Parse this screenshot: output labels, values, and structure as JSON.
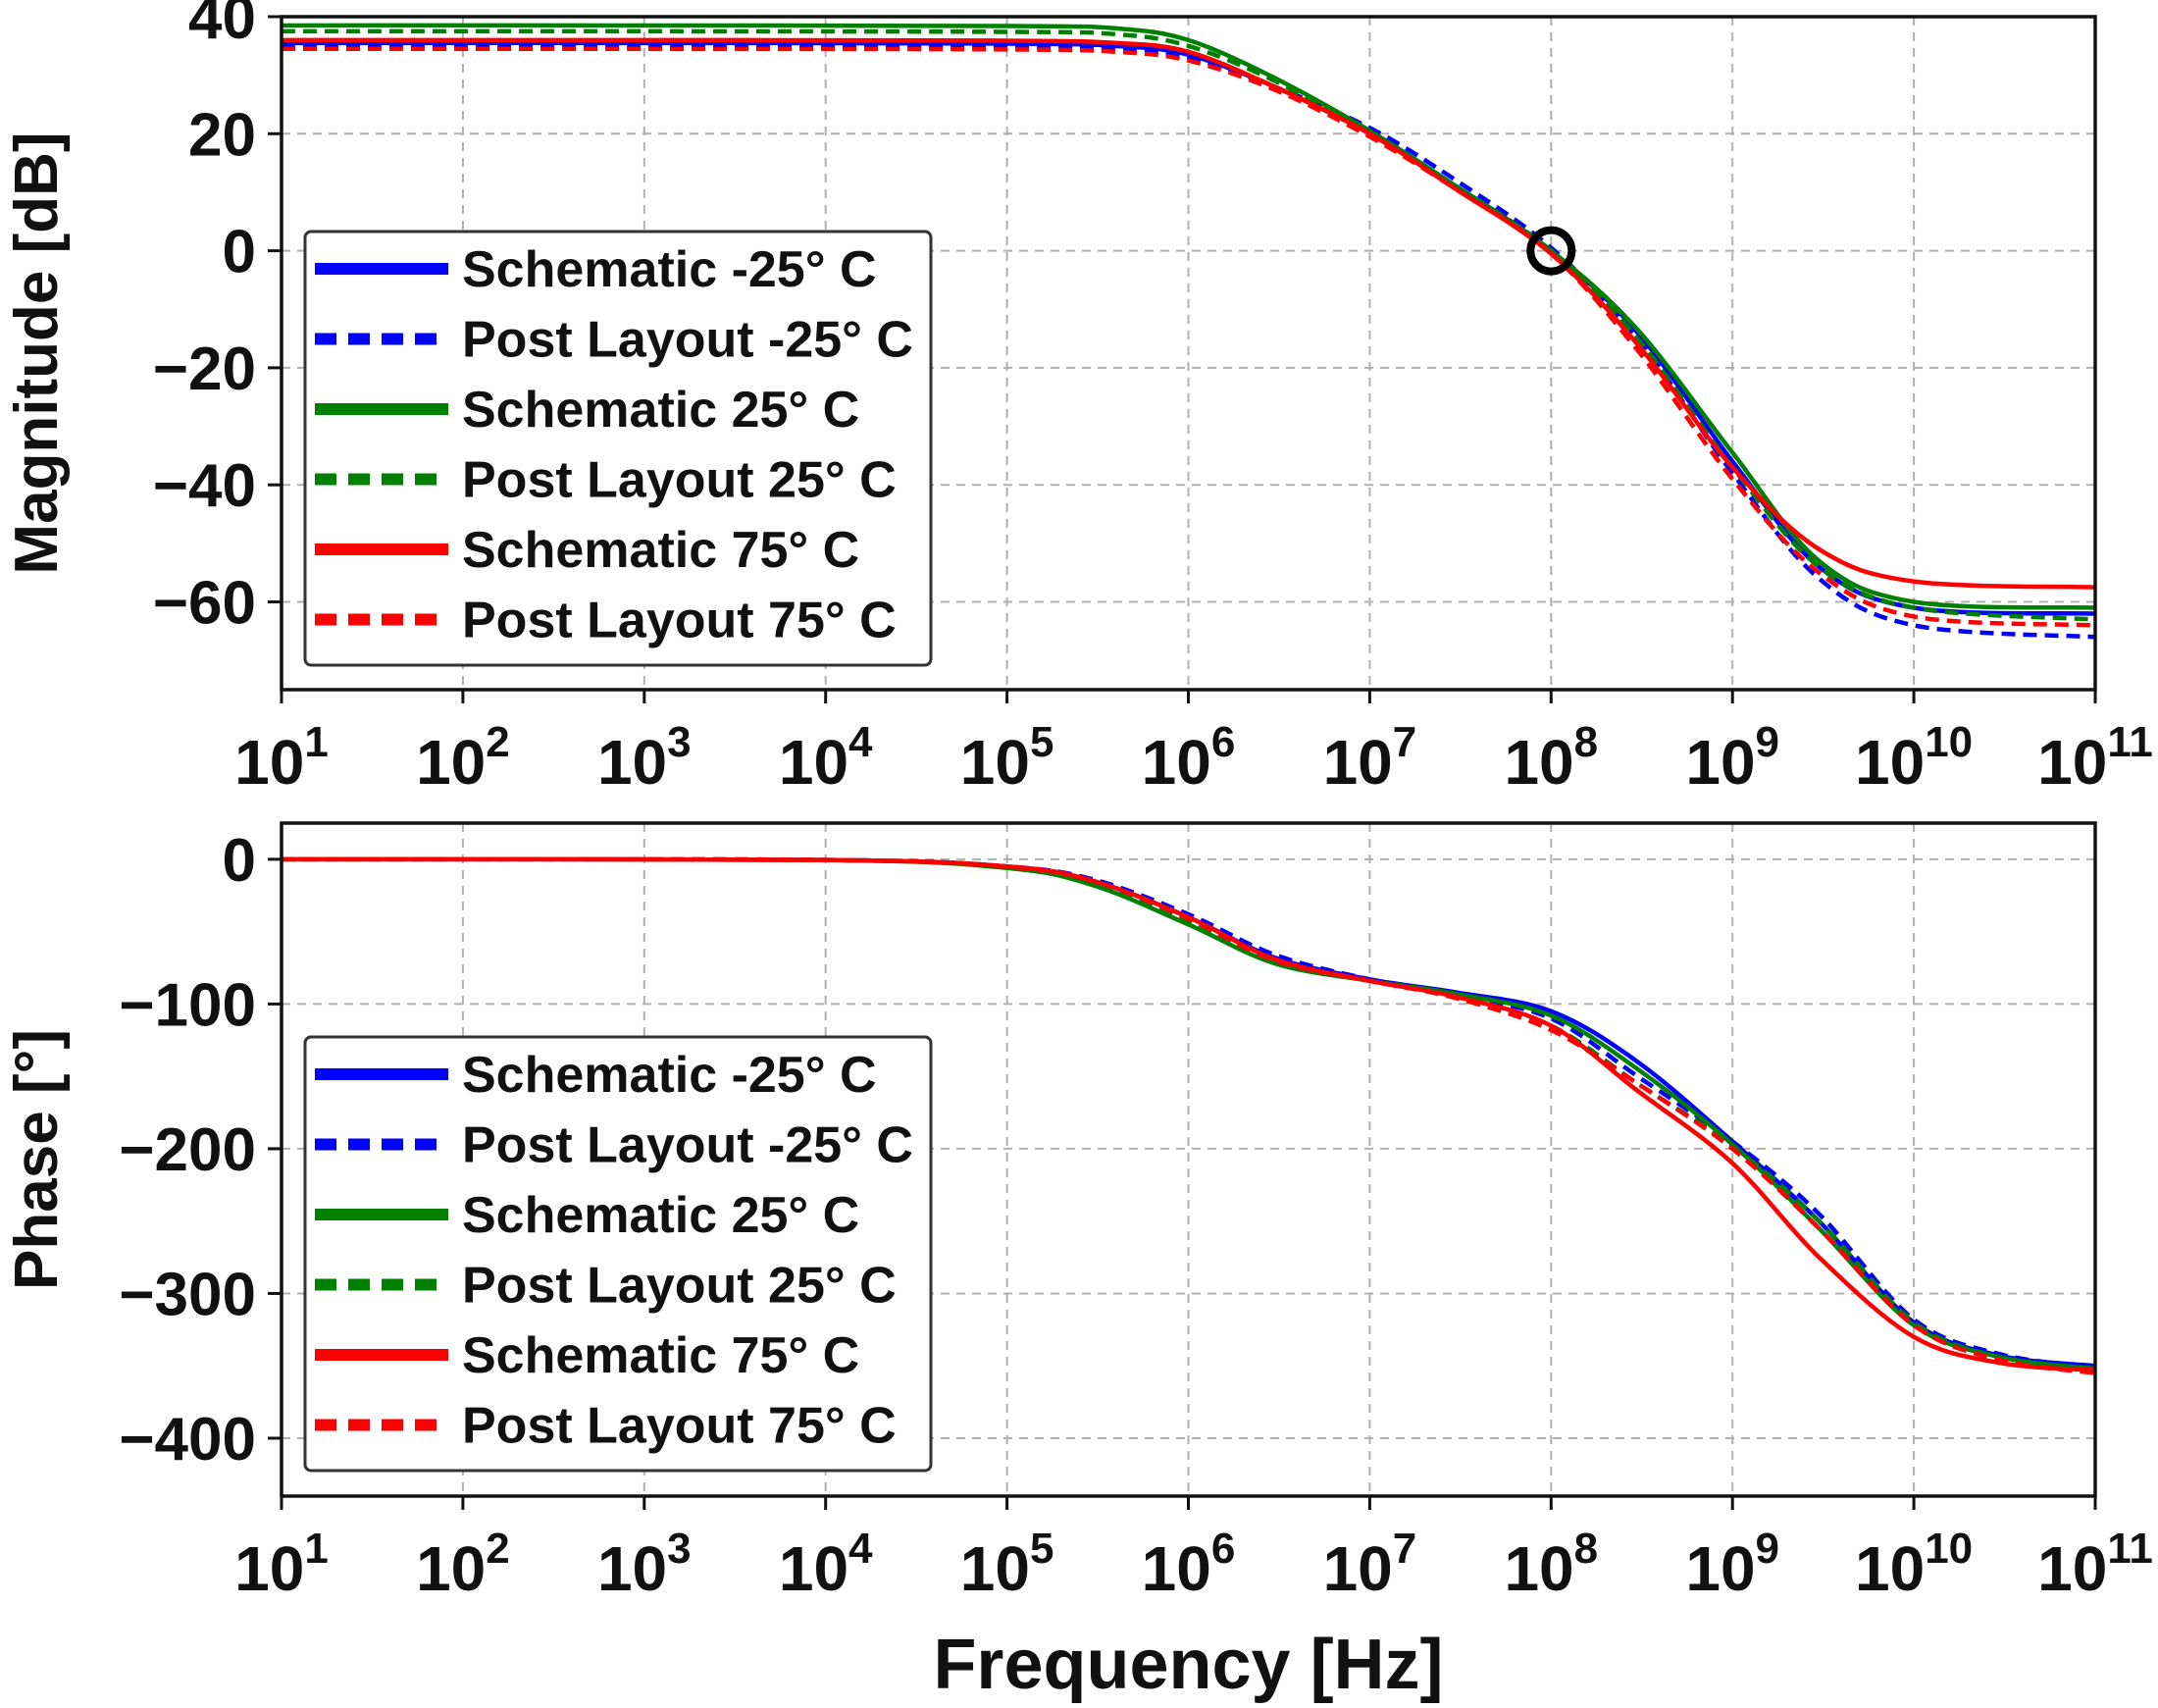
{
  "chart_data": [
    {
      "type": "line",
      "panel": "magnitude",
      "xlabel": "",
      "ylabel": "Magnitude [dB]",
      "xscale": "log",
      "xlim": [
        10,
        100000000000
      ],
      "ylim": [
        -75,
        40
      ],
      "xticks": [
        1,
        2,
        3,
        4,
        5,
        6,
        7,
        8,
        9,
        10,
        11
      ],
      "yticks": [
        40,
        20,
        0,
        -20,
        -40,
        -60
      ],
      "ytick_labels": [
        "40",
        "20",
        "0",
        "−20",
        "−40",
        "−60"
      ],
      "grid": true,
      "legend_placement": "left",
      "annotation": {
        "type": "circle-marker",
        "x": 100000000,
        "y": 0
      },
      "series": [
        {
          "name": "Schematic -25° C",
          "color": "#0000ff",
          "style": "solid",
          "x": [
            10,
            1000,
            100000,
            400000,
            1000000,
            3000000,
            10000000,
            30000000,
            100000000,
            300000000,
            1000000000,
            3000000000,
            10000000000,
            100000000000
          ],
          "y": [
            35.5,
            35.5,
            35.4,
            35,
            33.5,
            28,
            20,
            11,
            0,
            -14,
            -36,
            -54,
            -61,
            -62
          ]
        },
        {
          "name": "Post Layout -25° C",
          "color": "#0000ff",
          "style": "dashed",
          "x": [
            10,
            1000,
            100000,
            400000,
            1000000,
            3000000,
            10000000,
            30000000,
            100000000,
            300000000,
            1000000000,
            3000000000,
            10000000000,
            100000000000
          ],
          "y": [
            35,
            35,
            34.9,
            34.5,
            33,
            28,
            21,
            12,
            0.5,
            -15,
            -38,
            -56,
            -64,
            -66
          ]
        },
        {
          "name": "Schematic 25° C",
          "color": "#008000",
          "style": "solid",
          "x": [
            10,
            1000,
            100000,
            400000,
            1000000,
            3000000,
            10000000,
            30000000,
            100000000,
            300000000,
            1000000000,
            3000000000,
            10000000000,
            100000000000
          ],
          "y": [
            38.5,
            38.5,
            38.4,
            38,
            36,
            29.5,
            20.5,
            11,
            0,
            -13.5,
            -34.5,
            -53,
            -60,
            -61
          ]
        },
        {
          "name": "Post Layout 25° C",
          "color": "#008000",
          "style": "dashed",
          "x": [
            10,
            1000,
            100000,
            400000,
            1000000,
            3000000,
            10000000,
            30000000,
            100000000,
            300000000,
            1000000000,
            3000000000,
            10000000000,
            100000000000
          ],
          "y": [
            37.5,
            37.5,
            37.4,
            37,
            35,
            29,
            20,
            11,
            0,
            -15,
            -37,
            -54,
            -61,
            -63
          ]
        },
        {
          "name": "Schematic 75° C",
          "color": "#ff0000",
          "style": "solid",
          "x": [
            10,
            1000,
            100000,
            400000,
            1000000,
            3000000,
            10000000,
            30000000,
            100000000,
            300000000,
            1000000000,
            3000000000,
            10000000000,
            100000000000
          ],
          "y": [
            36,
            36,
            35.9,
            35.5,
            34,
            28,
            20,
            10.5,
            -0.5,
            -16,
            -37,
            -51,
            -56.5,
            -57.5
          ]
        },
        {
          "name": "Post Layout 75° C",
          "color": "#ff0000",
          "style": "dashed",
          "x": [
            10,
            1000,
            100000,
            400000,
            1000000,
            3000000,
            10000000,
            30000000,
            100000000,
            300000000,
            1000000000,
            3000000000,
            10000000000,
            100000000000
          ],
          "y": [
            34.5,
            34.5,
            34.4,
            34,
            32.5,
            27.5,
            19.5,
            10.5,
            -0.5,
            -17,
            -39,
            -55,
            -62.5,
            -64
          ]
        }
      ]
    },
    {
      "type": "line",
      "panel": "phase",
      "xlabel": "Frequency [Hz]",
      "ylabel": "Phase [°]",
      "xscale": "log",
      "xlim": [
        10,
        100000000000
      ],
      "ylim": [
        -440,
        25
      ],
      "xticks": [
        1,
        2,
        3,
        4,
        5,
        6,
        7,
        8,
        9,
        10,
        11
      ],
      "yticks": [
        0,
        -100,
        -200,
        -300,
        -400
      ],
      "ytick_labels": [
        "0",
        "−100",
        "−200",
        "−300",
        "−400"
      ],
      "grid": true,
      "legend_placement": "lower left",
      "series": [
        {
          "name": "Schematic -25° C",
          "color": "#0000ff",
          "style": "solid",
          "x": [
            10,
            10000,
            100000,
            300000,
            1000000,
            3000000,
            10000000,
            30000000,
            100000000,
            300000000,
            1000000000,
            3000000000,
            10000000000,
            30000000000,
            100000000000
          ],
          "y": [
            0,
            -0.5,
            -5,
            -15,
            -40,
            -68,
            -83,
            -92,
            -105,
            -140,
            -195,
            -250,
            -320,
            -343,
            -350
          ]
        },
        {
          "name": "Post Layout -25° C",
          "color": "#0000ff",
          "style": "dashed",
          "x": [
            10,
            10000,
            100000,
            300000,
            1000000,
            3000000,
            10000000,
            30000000,
            100000000,
            300000000,
            1000000000,
            3000000000,
            10000000000,
            30000000000,
            100000000000
          ],
          "y": [
            0,
            -0.5,
            -5,
            -14,
            -38,
            -66,
            -83,
            -94,
            -110,
            -150,
            -195,
            -245,
            -318,
            -342,
            -351
          ]
        },
        {
          "name": "Schematic 25° C",
          "color": "#008000",
          "style": "solid",
          "x": [
            10,
            10000,
            100000,
            300000,
            1000000,
            3000000,
            10000000,
            30000000,
            100000000,
            300000000,
            1000000000,
            3000000000,
            10000000000,
            30000000000,
            100000000000
          ],
          "y": [
            0,
            -0.5,
            -6,
            -18,
            -45,
            -72,
            -84,
            -93,
            -108,
            -145,
            -197,
            -255,
            -322,
            -344,
            -352
          ]
        },
        {
          "name": "Post Layout 25° C",
          "color": "#008000",
          "style": "dashed",
          "x": [
            10,
            10000,
            100000,
            300000,
            1000000,
            3000000,
            10000000,
            30000000,
            100000000,
            300000000,
            1000000000,
            3000000000,
            10000000000,
            30000000000,
            100000000000
          ],
          "y": [
            0,
            -0.5,
            -5.5,
            -16,
            -42,
            -70,
            -84,
            -95,
            -115,
            -155,
            -198,
            -250,
            -320,
            -344,
            -352
          ]
        },
        {
          "name": "Schematic 75° C",
          "color": "#ff0000",
          "style": "solid",
          "x": [
            10,
            10000,
            100000,
            300000,
            1000000,
            3000000,
            10000000,
            30000000,
            100000000,
            300000000,
            1000000000,
            3000000000,
            10000000000,
            30000000000,
            100000000000
          ],
          "y": [
            0,
            -0.5,
            -5,
            -15,
            -40,
            -69,
            -84,
            -95,
            -115,
            -160,
            -210,
            -275,
            -330,
            -348,
            -353
          ]
        },
        {
          "name": "Post Layout 75° C",
          "color": "#ff0000",
          "style": "dashed",
          "x": [
            10,
            10000,
            100000,
            300000,
            1000000,
            3000000,
            10000000,
            30000000,
            100000000,
            300000000,
            1000000000,
            3000000000,
            10000000000,
            30000000000,
            100000000000
          ],
          "y": [
            0,
            -0.5,
            -5,
            -15,
            -41,
            -70,
            -84,
            -96,
            -118,
            -155,
            -200,
            -255,
            -322,
            -346,
            -355
          ]
        }
      ]
    }
  ]
}
